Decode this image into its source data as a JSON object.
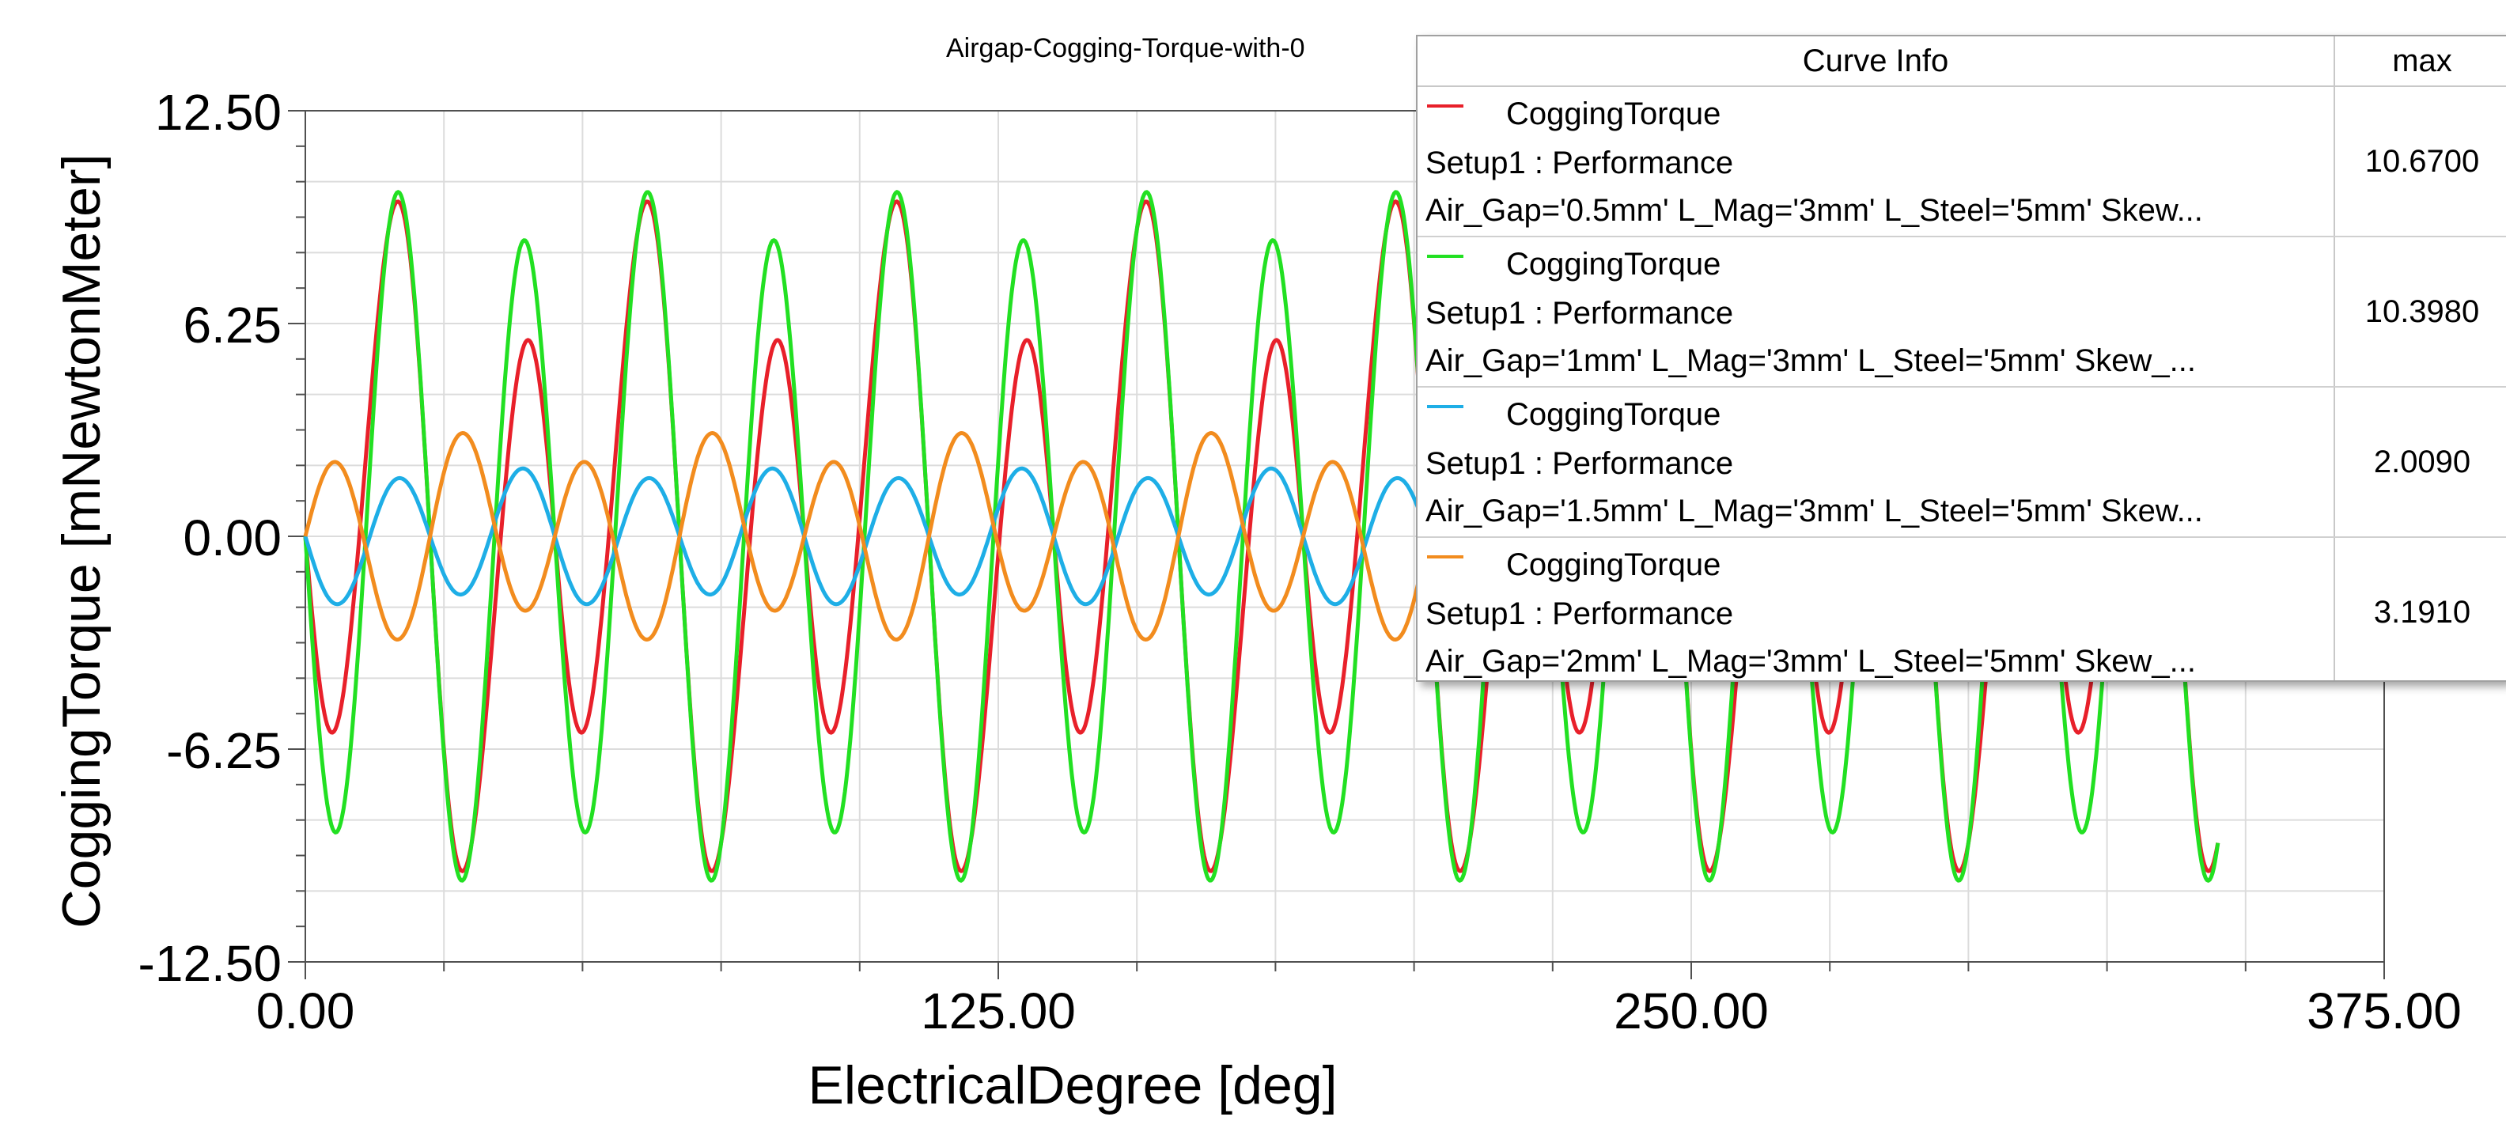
{
  "chart_data": {
    "type": "line",
    "title": "Airgap-Cogging-Torque-with-0",
    "xlabel": "ElectricalDegree [deg]",
    "ylabel": "CoggingTorque [mNewtonMeter]",
    "xlim": [
      0,
      375
    ],
    "ylim": [
      -12.5,
      12.5
    ],
    "x_ticks": [
      "0.00",
      "125.00",
      "250.00",
      "375.00"
    ],
    "y_ticks": [
      "-12.50",
      "-6.25",
      "0.00",
      "6.25",
      "12.50"
    ],
    "grid": true,
    "legend_position": "top-right",
    "legend_header": {
      "info": "Curve Info",
      "max": "max"
    },
    "series": [
      {
        "name": "CoggingTorque",
        "setup": "Setup1 : Performance",
        "params": "Air_Gap='0.5mm' L_Mag='3mm' L_Steel='5mm' Skew...",
        "max_label": "10.6700",
        "color": "#e8202a",
        "period_deg": 45,
        "harmonics": [
          [
            3.0,
            1
          ],
          [
            -7.7,
            2
          ],
          [
            -0.3,
            4
          ]
        ]
      },
      {
        "name": "CoggingTorque",
        "setup": "Setup1 : Performance",
        "params": "Air_Gap='1mm' L_Mag='3mm' L_Steel='5mm' Skew_...",
        "max_label": "10.3980",
        "color": "#22e022",
        "period_deg": 45,
        "harmonics": [
          [
            1.0,
            1
          ],
          [
            -9.4,
            2
          ]
        ]
      },
      {
        "name": "CoggingTorque",
        "setup": "Setup1 : Performance",
        "params": "Air_Gap='1.5mm' L_Mag='3mm' L_Steel='5mm' Skew...",
        "max_label": "2.0090",
        "color": "#1eaee6",
        "period_deg": 45,
        "harmonics": [
          [
            -0.2,
            1
          ],
          [
            -1.85,
            2
          ]
        ]
      },
      {
        "name": "CoggingTorque",
        "setup": "Setup1 : Performance",
        "params": "Air_Gap='2mm' L_Mag='3mm' L_Steel='5mm' Skew_...",
        "max_label": "3.1910",
        "color": "#f28c1e",
        "period_deg": 45,
        "harmonics": [
          [
            -0.6,
            1
          ],
          [
            2.6,
            2
          ]
        ]
      }
    ]
  }
}
